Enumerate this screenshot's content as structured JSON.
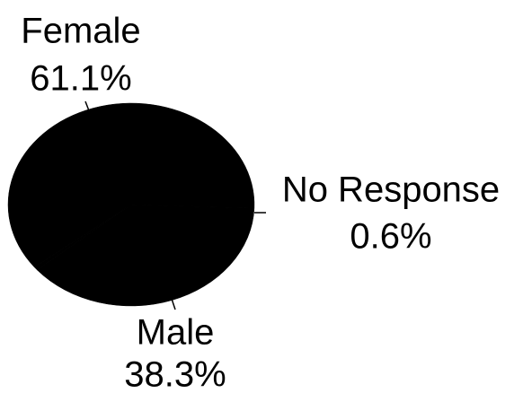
{
  "chart_data": {
    "type": "pie",
    "categories": [
      "Female",
      "Male",
      "No Response"
    ],
    "values": [
      61.1,
      38.3,
      0.6
    ],
    "value_labels": [
      "61.1%",
      "38.3%",
      "0.6%"
    ],
    "colors": [
      "#000000",
      "#000000",
      "#000000"
    ]
  }
}
